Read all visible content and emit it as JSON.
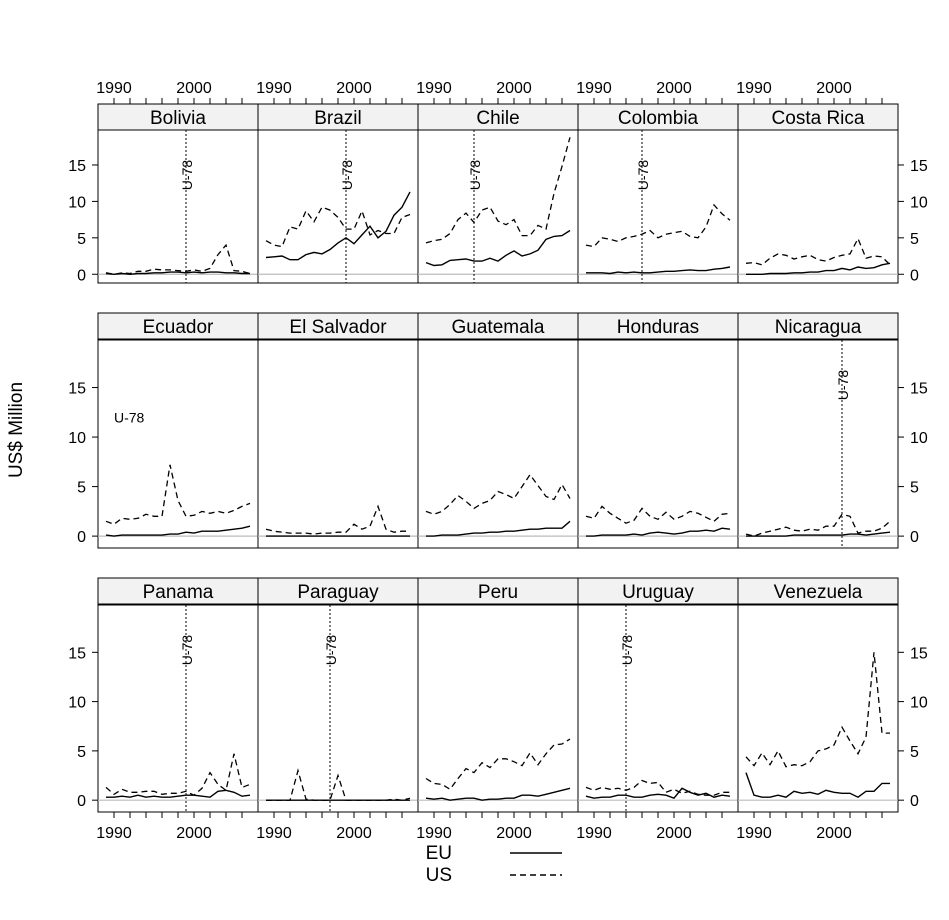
{
  "chart_data": {
    "type": "line",
    "title": "",
    "ylabel": "US$ Million",
    "xlim": [
      1988,
      2008
    ],
    "ylim": [
      -1.2,
      19.8
    ],
    "x_ticks": [
      1990,
      2000
    ],
    "y_ticks": [
      0,
      5,
      10,
      15
    ],
    "x": [
      1989,
      1990,
      1991,
      1992,
      1993,
      1994,
      1995,
      1996,
      1997,
      1998,
      1999,
      2000,
      2001,
      2002,
      2003,
      2004,
      2005,
      2006,
      2007
    ],
    "legend": {
      "placement": "bottom",
      "entries": [
        {
          "name": "EU",
          "style": "solid"
        },
        {
          "name": "US",
          "style": "dashed"
        }
      ]
    },
    "zero_line": {
      "color": "#bbbbbb"
    },
    "marker_label": "U-78",
    "panels": [
      {
        "name": "Bolivia",
        "u78_year": 1999,
        "EU": [
          0.1,
          0.0,
          0.1,
          0.0,
          0.1,
          0.1,
          0.2,
          0.2,
          0.3,
          0.3,
          0.2,
          0.3,
          0.2,
          0.3,
          0.3,
          0.2,
          0.2,
          0.1,
          0.1
        ],
        "US": [
          0.2,
          0.0,
          0.2,
          0.1,
          0.4,
          0.4,
          0.7,
          0.6,
          0.6,
          0.5,
          0.4,
          0.6,
          0.4,
          0.8,
          2.7,
          4.0,
          0.5,
          0.4,
          0.1
        ]
      },
      {
        "name": "Brazil",
        "u78_year": 1999,
        "EU": [
          2.3,
          2.4,
          2.5,
          2.0,
          2.0,
          2.7,
          3.0,
          2.8,
          3.4,
          4.3,
          5.0,
          4.2,
          5.4,
          6.6,
          5.0,
          5.9,
          8.1,
          9.2,
          11.3
        ],
        "US": [
          4.6,
          4.0,
          3.8,
          6.5,
          6.2,
          8.7,
          7.2,
          9.2,
          8.8,
          7.8,
          6.2,
          6.2,
          8.7,
          5.4,
          6.0,
          5.6,
          5.6,
          7.8,
          8.2
        ]
      },
      {
        "name": "Chile",
        "u78_year": 1995,
        "EU": [
          1.6,
          1.2,
          1.3,
          1.9,
          2.0,
          2.1,
          1.8,
          1.8,
          2.2,
          1.8,
          2.6,
          3.2,
          2.5,
          2.8,
          3.3,
          4.8,
          5.2,
          5.3,
          6.0
        ],
        "US": [
          4.3,
          4.6,
          4.8,
          5.6,
          7.5,
          8.4,
          7.1,
          8.8,
          9.2,
          7.3,
          6.8,
          7.5,
          5.3,
          5.3,
          6.7,
          6.2,
          11.1,
          14.8,
          18.8
        ]
      },
      {
        "name": "Colombia",
        "u78_year": 1996,
        "EU": [
          0.2,
          0.2,
          0.2,
          0.1,
          0.3,
          0.2,
          0.3,
          0.2,
          0.2,
          0.3,
          0.4,
          0.4,
          0.5,
          0.6,
          0.5,
          0.5,
          0.7,
          0.8,
          1.0
        ],
        "US": [
          4.0,
          3.8,
          5.0,
          4.8,
          4.5,
          5.0,
          5.2,
          5.5,
          6.0,
          5.0,
          5.5,
          5.7,
          5.9,
          5.2,
          5.0,
          6.5,
          9.5,
          8.3,
          7.4
        ]
      },
      {
        "name": "Costa Rica",
        "u78_year": null,
        "EU": [
          0.0,
          0.0,
          0.0,
          0.1,
          0.1,
          0.1,
          0.2,
          0.2,
          0.3,
          0.3,
          0.5,
          0.5,
          0.8,
          0.6,
          1.0,
          0.8,
          0.9,
          1.3,
          1.5
        ],
        "US": [
          1.5,
          1.6,
          1.3,
          2.2,
          2.8,
          2.6,
          2.1,
          2.4,
          2.6,
          2.0,
          1.8,
          2.3,
          2.6,
          2.8,
          4.9,
          2.2,
          2.5,
          2.4,
          1.3
        ]
      },
      {
        "name": "Ecuador",
        "u78_year": null,
        "EU": [
          0.1,
          0.0,
          0.1,
          0.1,
          0.1,
          0.1,
          0.1,
          0.1,
          0.2,
          0.2,
          0.4,
          0.3,
          0.5,
          0.5,
          0.5,
          0.6,
          0.7,
          0.8,
          1.0
        ],
        "US": [
          1.5,
          1.2,
          1.8,
          1.7,
          1.8,
          2.2,
          2.0,
          2.0,
          7.2,
          3.6,
          2.0,
          2.1,
          2.5,
          2.3,
          2.5,
          2.3,
          2.6,
          3.0,
          3.3
        ]
      },
      {
        "name": "El Salvador",
        "u78_year": null,
        "EU": [
          0.0,
          0.0,
          0.0,
          0.0,
          0.0,
          0.0,
          0.0,
          0.0,
          0.0,
          0.0,
          0.0,
          0.0,
          0.0,
          0.0,
          0.0,
          0.0,
          0.0,
          0.0,
          0.0
        ],
        "US": [
          0.7,
          0.5,
          0.4,
          0.3,
          0.3,
          0.3,
          0.2,
          0.3,
          0.3,
          0.4,
          0.4,
          1.2,
          0.7,
          1.0,
          3.0,
          0.7,
          0.4,
          0.5,
          0.5
        ]
      },
      {
        "name": "Guatemala",
        "u78_year": null,
        "EU": [
          0.0,
          0.0,
          0.1,
          0.1,
          0.1,
          0.2,
          0.3,
          0.3,
          0.4,
          0.4,
          0.5,
          0.5,
          0.6,
          0.7,
          0.7,
          0.8,
          0.8,
          0.8,
          1.5
        ],
        "US": [
          2.5,
          2.2,
          2.5,
          3.2,
          4.1,
          3.5,
          2.8,
          3.3,
          3.6,
          4.5,
          4.2,
          3.8,
          5.0,
          6.2,
          5.1,
          4.0,
          3.7,
          5.2,
          3.8
        ]
      },
      {
        "name": "Honduras",
        "u78_year": null,
        "EU": [
          0.0,
          0.0,
          0.1,
          0.1,
          0.1,
          0.1,
          0.2,
          0.1,
          0.3,
          0.4,
          0.3,
          0.2,
          0.3,
          0.5,
          0.5,
          0.6,
          0.5,
          0.8,
          0.7
        ],
        "US": [
          2.0,
          1.8,
          3.0,
          2.3,
          1.8,
          1.3,
          1.6,
          2.8,
          2.0,
          1.7,
          2.4,
          1.7,
          2.0,
          2.5,
          2.3,
          1.9,
          1.5,
          2.2,
          2.3
        ]
      },
      {
        "name": "Nicaragua",
        "u78_year": 2001,
        "EU": [
          0.0,
          0.0,
          0.0,
          0.0,
          0.0,
          0.0,
          0.1,
          0.1,
          0.1,
          0.1,
          0.1,
          0.1,
          0.1,
          0.2,
          0.2,
          0.1,
          0.2,
          0.3,
          0.4
        ],
        "US": [
          0.2,
          0.0,
          0.3,
          0.5,
          0.7,
          0.9,
          0.6,
          0.5,
          0.7,
          0.6,
          1.0,
          1.0,
          2.2,
          2.0,
          0.3,
          0.5,
          0.5,
          0.8,
          1.5
        ]
      },
      {
        "name": "Panama",
        "u78_year": 1999,
        "EU": [
          0.3,
          0.3,
          0.4,
          0.3,
          0.5,
          0.3,
          0.4,
          0.3,
          0.3,
          0.4,
          0.5,
          0.5,
          0.4,
          0.3,
          0.9,
          1.0,
          0.8,
          0.4,
          0.5
        ],
        "US": [
          1.3,
          0.6,
          1.1,
          0.8,
          0.8,
          0.9,
          0.9,
          0.6,
          0.7,
          0.7,
          0.9,
          0.5,
          1.2,
          2.8,
          1.6,
          1.0,
          4.7,
          1.3,
          1.6
        ]
      },
      {
        "name": "Paraguay",
        "u78_year": 1997,
        "EU": [
          0.0,
          0.0,
          0.0,
          0.0,
          0.0,
          0.0,
          0.0,
          0.0,
          0.0,
          0.0,
          0.0,
          0.0,
          0.0,
          0.0,
          0.0,
          0.0,
          0.0,
          0.0,
          0.0
        ],
        "US": [
          0.0,
          0.0,
          0.0,
          0.0,
          3.0,
          0.1,
          0.0,
          0.0,
          0.0,
          2.5,
          0.0,
          0.0,
          0.0,
          0.0,
          0.0,
          0.0,
          0.1,
          0.0,
          0.2
        ]
      },
      {
        "name": "Peru",
        "u78_year": null,
        "EU": [
          0.2,
          0.1,
          0.2,
          0.0,
          0.1,
          0.2,
          0.2,
          0.0,
          0.1,
          0.1,
          0.2,
          0.2,
          0.5,
          0.5,
          0.4,
          0.6,
          0.8,
          1.0,
          1.2
        ],
        "US": [
          2.2,
          1.7,
          1.6,
          1.1,
          2.2,
          3.2,
          2.8,
          3.8,
          3.3,
          4.2,
          4.2,
          3.9,
          3.5,
          4.8,
          3.6,
          4.7,
          5.6,
          5.7,
          6.2
        ]
      },
      {
        "name": "Uruguay",
        "u78_year": 1994,
        "EU": [
          0.4,
          0.2,
          0.3,
          0.3,
          0.5,
          0.5,
          0.3,
          0.3,
          0.5,
          0.6,
          0.5,
          0.2,
          1.2,
          0.8,
          0.5,
          0.7,
          0.3,
          0.5,
          0.4
        ],
        "US": [
          1.3,
          1.0,
          1.3,
          1.1,
          1.2,
          1.0,
          1.3,
          2.0,
          1.7,
          1.8,
          0.8,
          1.1,
          0.7,
          0.9,
          0.6,
          0.5,
          0.5,
          0.8,
          0.8
        ]
      },
      {
        "name": "Venezuela",
        "u78_year": null,
        "EU": [
          2.8,
          0.5,
          0.3,
          0.3,
          0.5,
          0.3,
          0.9,
          0.7,
          0.8,
          0.6,
          1.0,
          0.8,
          0.7,
          0.7,
          0.3,
          0.9,
          0.9,
          1.7,
          1.7
        ],
        "US": [
          4.4,
          3.5,
          4.8,
          3.6,
          5.0,
          3.4,
          3.6,
          3.5,
          3.9,
          5.0,
          5.2,
          5.6,
          7.4,
          6.0,
          4.7,
          6.4,
          15.0,
          6.8,
          6.8
        ]
      }
    ]
  }
}
